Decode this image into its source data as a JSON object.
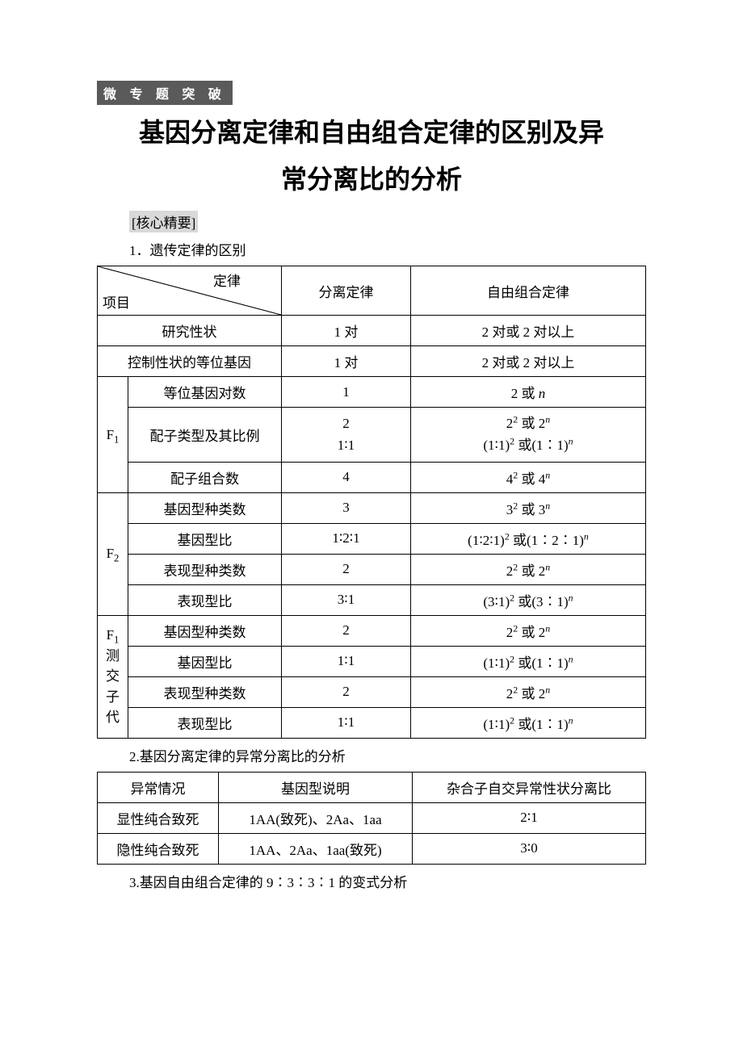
{
  "colors": {
    "badge_bg": "#5a5a5a",
    "badge_fg": "#ffffff",
    "subhead_bg": "#d9d9d9",
    "border": "#000000",
    "background": "#ffffff"
  },
  "fonts": {
    "title_family": "SimHei",
    "body_family": "SimSun",
    "title_size_pt": 24,
    "body_size_pt": 12
  },
  "badge": "微 专 题 突 破",
  "title_line1": "基因分离定律和自由组合定律的区别及异",
  "title_line2": "常分离比的分析",
  "core_summary_label": "[核心精要]",
  "section1_heading": "1．遗传定律的区别",
  "table1": {
    "diag_top": "定律",
    "diag_bottom": "项目",
    "col_headers": [
      "分离定律",
      "自由组合定律"
    ],
    "rows_simple": [
      {
        "label": "研究性状",
        "c1": "1 对",
        "c2": "2 对或 2 对以上"
      },
      {
        "label": "控制性状的等位基因",
        "c1": "1 对",
        "c2": "2 对或 2 对以上"
      }
    ],
    "group_f1": {
      "label": "F₁",
      "rows": [
        {
          "label": "等位基因对数",
          "c1": "1",
          "c2_html": "2 或 <span class='it'>n</span>"
        },
        {
          "label": "配子类型及其比例",
          "c1_html": "2<br>1∶1",
          "c2_html": "2<sup>2</sup> 或 2<span class='it'><sup>n</sup></span><br>(1∶1)<sup>2</sup> 或(1∶1)<span class='it'><sup>n</sup></span>"
        },
        {
          "label": "配子组合数",
          "c1": "4",
          "c2_html": "4<sup>2</sup> 或 4<span class='it'><sup>n</sup></span>"
        }
      ]
    },
    "group_f2": {
      "label": "F₂",
      "rows": [
        {
          "label": "基因型种类数",
          "c1": "3",
          "c2_html": "3<sup>2</sup> 或 3<span class='it'><sup>n</sup></span>"
        },
        {
          "label": "基因型比",
          "c1": "1∶2∶1",
          "c2_html": "(1∶2∶1)<sup>2</sup> 或(1∶2∶1)<span class='it'><sup>n</sup></span>"
        },
        {
          "label": "表现型种类数",
          "c1": "2",
          "c2_html": "2<sup>2</sup> 或 2<span class='it'><sup>n</sup></span>"
        },
        {
          "label": "表现型比",
          "c1": "3∶1",
          "c2_html": "(3∶1)<sup>2</sup> 或(3∶1)<span class='it'><sup>n</sup></span>"
        }
      ]
    },
    "group_testcross": {
      "label_lines": [
        "F₁",
        "测",
        "交",
        "子",
        "代"
      ],
      "rows": [
        {
          "label": "基因型种类数",
          "c1": "2",
          "c2_html": "2<sup>2</sup> 或 2<span class='it'><sup>n</sup></span>"
        },
        {
          "label": "基因型比",
          "c1": "1∶1",
          "c2_html": "(1∶1)<sup>2</sup> 或(1∶1)<span class='it'><sup>n</sup></span>"
        },
        {
          "label": "表现型种类数",
          "c1": "2",
          "c2_html": "2<sup>2</sup> 或 2<span class='it'><sup>n</sup></span>"
        },
        {
          "label": "表现型比",
          "c1": "1∶1",
          "c2_html": "(1∶1)<sup>2</sup> 或(1∶1)<span class='it'><sup>n</sup></span>"
        }
      ]
    }
  },
  "section2_heading": "2.基因分离定律的异常分离比的分析",
  "table2": {
    "headers": [
      "异常情况",
      "基因型说明",
      "杂合子自交异常性状分离比"
    ],
    "rows": [
      [
        "显性纯合致死",
        "1AA(致死)、2Aa、1aa",
        "2∶1"
      ],
      [
        "隐性纯合致死",
        "1AA、2Aa、1aa(致死)",
        "3∶0"
      ]
    ]
  },
  "section3_heading": "3.基因自由组合定律的 9∶3∶3∶1 的变式分析"
}
